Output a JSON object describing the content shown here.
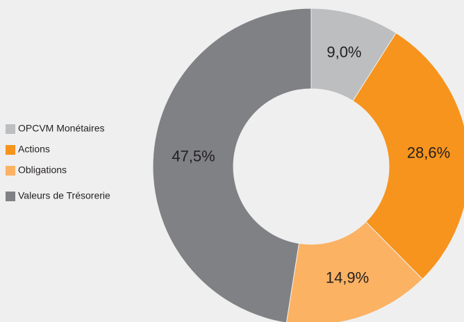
{
  "chart_data": {
    "type": "donut",
    "categories": [
      "OPCVM Monétaires",
      "Actions",
      "Obligations",
      "Valeurs de Trésorerie"
    ],
    "values": [
      9.0,
      28.6,
      14.9,
      47.5
    ],
    "value_labels": [
      "9,0%",
      "28,6%",
      "14,9%",
      "47,5%"
    ],
    "colors": [
      "#bcbec0",
      "#f7941d",
      "#fbb263",
      "#808184"
    ],
    "legend": "left"
  }
}
